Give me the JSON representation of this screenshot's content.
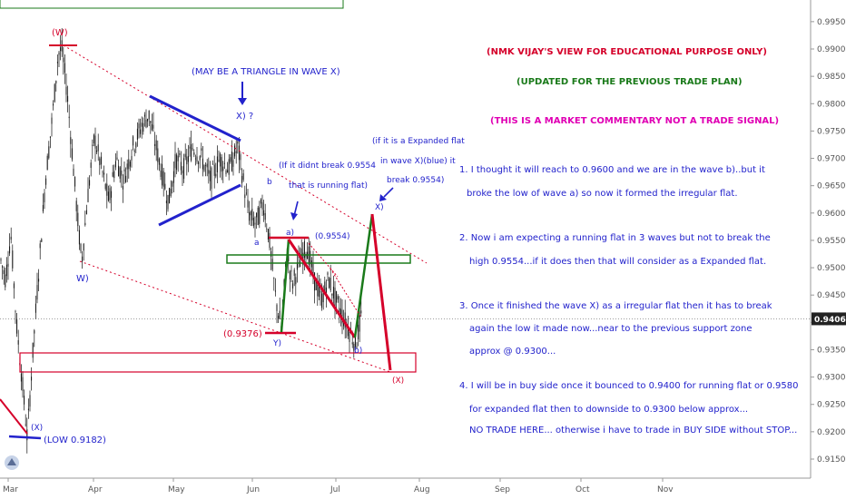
{
  "chart_data": {
    "type": "candlestick",
    "price_axis": {
      "ticks": [
        "0.99500",
        "0.99000",
        "0.98500",
        "0.98000",
        "0.97500",
        "0.97000",
        "0.96500",
        "0.96000",
        "0.95500",
        "0.95000",
        "0.94500",
        "0.94000",
        "0.93500",
        "0.93000",
        "0.92500",
        "0.92000",
        "0.91500"
      ],
      "current_price": "0.94065",
      "range": [
        0.912,
        0.998
      ]
    },
    "time_axis": {
      "ticks": [
        "Mar",
        "Apr",
        "May",
        "Jun",
        "Jul",
        "Aug",
        "Sep",
        "Oct",
        "Nov"
      ]
    },
    "wave_labels": {
      "w_top": "(W)",
      "x_low": "(X)",
      "low_label": "(LOW 0.9182)",
      "w_lower": "W)",
      "x_q": "X) ?",
      "triangle_note": "(MAY BE A TRIANGLE IN WAVE X)",
      "a_small": "a",
      "b_small": "b",
      "a_paren": "a)",
      "b_paren": "b)",
      "y_paren": "Y)",
      "x_paren": "X)",
      "x_target": "(X)",
      "level_9554": "(0.9554)",
      "level_9376": "(0.9376)",
      "running_note_1": "(If it didnt break 0.9554",
      "running_note_2": "that is running flat)",
      "expanded_note_1": "(if it is a Expanded flat",
      "expanded_note_2": "in wave X)(blue) it",
      "expanded_note_3": "break 0.9554)"
    }
  },
  "commentary": {
    "header": "(NMK VIJAY'S VIEW FOR EDUCATIONAL PURPOSE ONLY)",
    "updated": "(UPDATED FOR THE PREVIOUS TRADE PLAN)",
    "disclaimer": "(THIS IS A MARKET COMMENTARY NOT A TRADE SIGNAL)",
    "p1_l1": "1. I thought it will reach to 0.9600 and we are in the  wave b)..but it",
    "p1_l2": "broke the low of wave a) so now it formed the irregular flat.",
    "p2_l1": "2. Now i am expecting a running flat in 3 waves but not to break the",
    "p2_l2": "high 0.9554...if it does then that will consider as a Expanded flat.",
    "p3_l1": "3. Once it finished the wave X) as a irregular flat then it has to break",
    "p3_l2": "again the low it made now...near to the previous support zone",
    "p3_l3": "approx @ 0.9300...",
    "p4_l1": "4. I will be in buy side once it bounced to 0.9400 for running flat or 0.9580",
    "p4_l2": "for expanded flat then to downside to 0.9300 below approx...",
    "p4_l3": "NO TRADE HERE... otherwise i have to trade in BUY SIDE without STOP..."
  },
  "colors": {
    "blue": "#2222cc",
    "red": "#d5002a",
    "green": "#1a7a1a",
    "magenta": "#e000b4",
    "candle": "#111111"
  }
}
